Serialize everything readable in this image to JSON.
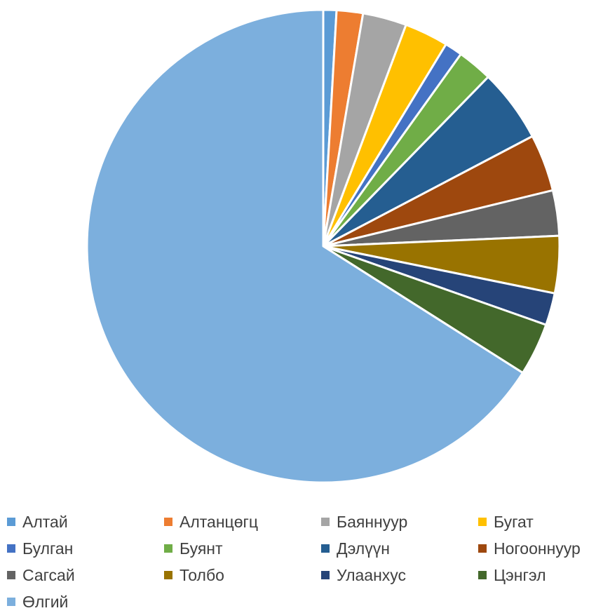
{
  "chart_data": {
    "type": "pie",
    "title": "",
    "start_angle_deg": 0,
    "direction": "clockwise",
    "legend_position": "bottom",
    "slices": [
      {
        "label": "Алтай",
        "value": 0.9,
        "color": "#5B9BD5"
      },
      {
        "label": "Алтанцөгц",
        "value": 1.8,
        "color": "#ED7D31"
      },
      {
        "label": "Баяннуур",
        "value": 3.0,
        "color": "#A5A5A5"
      },
      {
        "label": "Бугат",
        "value": 3.0,
        "color": "#FFC000"
      },
      {
        "label": "Булган",
        "value": 1.2,
        "color": "#4472C4"
      },
      {
        "label": "Буянт",
        "value": 2.4,
        "color": "#70AD47"
      },
      {
        "label": "Дэлүүн",
        "value": 5.0,
        "color": "#255E91"
      },
      {
        "label": "Ногооннуур",
        "value": 3.9,
        "color": "#9E480E"
      },
      {
        "label": "Сагсай",
        "value": 3.1,
        "color": "#636363"
      },
      {
        "label": "Толбо",
        "value": 3.9,
        "color": "#997300"
      },
      {
        "label": "Улаанхус",
        "value": 2.2,
        "color": "#264478"
      },
      {
        "label": "Цэнгэл",
        "value": 3.6,
        "color": "#43682B"
      },
      {
        "label": "Өлгий",
        "value": 66.0,
        "color": "#7CAFDD"
      }
    ]
  }
}
